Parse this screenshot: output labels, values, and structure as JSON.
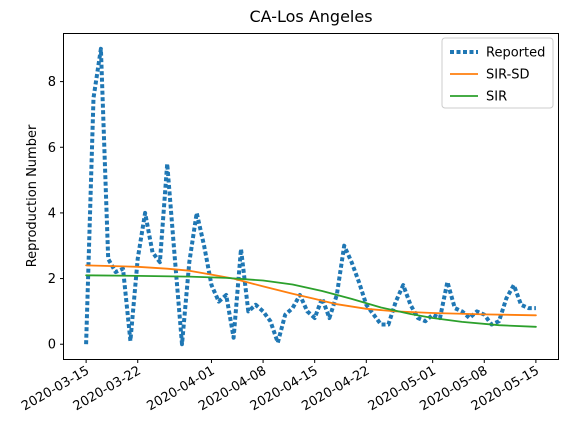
{
  "chart_data": {
    "type": "line",
    "title": "CA-Los Angeles",
    "xlabel": "",
    "ylabel": "Reproduction Number",
    "ylim": [
      -0.45,
      9.45
    ],
    "xlim": [
      "2020-03-12",
      "2020-05-18"
    ],
    "yticks": [
      0,
      2,
      4,
      6,
      8
    ],
    "xticks": [
      "2020-03-15",
      "2020-03-22",
      "2020-04-01",
      "2020-04-08",
      "2020-04-15",
      "2020-04-22",
      "2020-05-01",
      "2020-05-08",
      "2020-05-15"
    ],
    "grid": false,
    "legend_position": "top-right",
    "series": [
      {
        "name": "Reported",
        "style": "dotted",
        "color": "#1f77b4",
        "x": [
          "2020-03-15",
          "2020-03-16",
          "2020-03-17",
          "2020-03-18",
          "2020-03-19",
          "2020-03-20",
          "2020-03-21",
          "2020-03-22",
          "2020-03-23",
          "2020-03-24",
          "2020-03-25",
          "2020-03-26",
          "2020-03-27",
          "2020-03-28",
          "2020-03-29",
          "2020-03-30",
          "2020-03-31",
          "2020-04-01",
          "2020-04-02",
          "2020-04-03",
          "2020-04-04",
          "2020-04-05",
          "2020-04-06",
          "2020-04-07",
          "2020-04-08",
          "2020-04-09",
          "2020-04-10",
          "2020-04-11",
          "2020-04-12",
          "2020-04-13",
          "2020-04-14",
          "2020-04-15",
          "2020-04-16",
          "2020-04-17",
          "2020-04-18",
          "2020-04-19",
          "2020-04-20",
          "2020-04-21",
          "2020-04-22",
          "2020-04-23",
          "2020-04-24",
          "2020-04-25",
          "2020-04-26",
          "2020-04-27",
          "2020-04-28",
          "2020-04-29",
          "2020-04-30",
          "2020-05-01",
          "2020-05-02",
          "2020-05-03",
          "2020-05-04",
          "2020-05-05",
          "2020-05-06",
          "2020-05-07",
          "2020-05-08",
          "2020-05-09",
          "2020-05-10",
          "2020-05-11",
          "2020-05-12",
          "2020-05-13",
          "2020-05-14",
          "2020-05-15"
        ],
        "y": [
          0.0,
          7.5,
          9.0,
          2.6,
          2.2,
          2.3,
          0.1,
          2.6,
          4.0,
          2.8,
          2.5,
          5.5,
          2.7,
          0.0,
          2.5,
          4.0,
          3.0,
          1.8,
          1.3,
          1.5,
          0.2,
          2.9,
          1.0,
          1.2,
          1.0,
          0.7,
          0.05,
          0.9,
          1.1,
          1.5,
          1.0,
          0.8,
          1.4,
          0.8,
          1.5,
          3.0,
          2.5,
          1.9,
          1.2,
          0.9,
          0.6,
          0.6,
          1.3,
          1.8,
          1.2,
          0.8,
          0.7,
          0.9,
          0.8,
          1.9,
          1.1,
          1.0,
          0.8,
          1.0,
          0.9,
          0.6,
          0.7,
          1.4,
          1.8,
          1.2,
          1.1,
          1.1
        ]
      },
      {
        "name": "SIR-SD",
        "style": "solid",
        "color": "#ff7f0e",
        "x": [
          "2020-03-15",
          "2020-03-22",
          "2020-03-26",
          "2020-03-29",
          "2020-04-01",
          "2020-04-04",
          "2020-04-08",
          "2020-04-12",
          "2020-04-15",
          "2020-04-18",
          "2020-04-22",
          "2020-04-26",
          "2020-05-01",
          "2020-05-08",
          "2020-05-15"
        ],
        "y": [
          2.4,
          2.36,
          2.3,
          2.24,
          2.12,
          2.0,
          1.76,
          1.54,
          1.38,
          1.22,
          1.08,
          1.0,
          0.95,
          0.91,
          0.88
        ]
      },
      {
        "name": "SIR",
        "style": "solid",
        "color": "#2ca02c",
        "x": [
          "2020-03-15",
          "2020-03-22",
          "2020-03-29",
          "2020-04-03",
          "2020-04-08",
          "2020-04-12",
          "2020-04-16",
          "2020-04-20",
          "2020-04-24",
          "2020-04-28",
          "2020-05-01",
          "2020-05-05",
          "2020-05-10",
          "2020-05-15"
        ],
        "y": [
          2.1,
          2.08,
          2.06,
          2.02,
          1.94,
          1.82,
          1.62,
          1.38,
          1.12,
          0.92,
          0.8,
          0.68,
          0.58,
          0.53
        ]
      }
    ]
  }
}
